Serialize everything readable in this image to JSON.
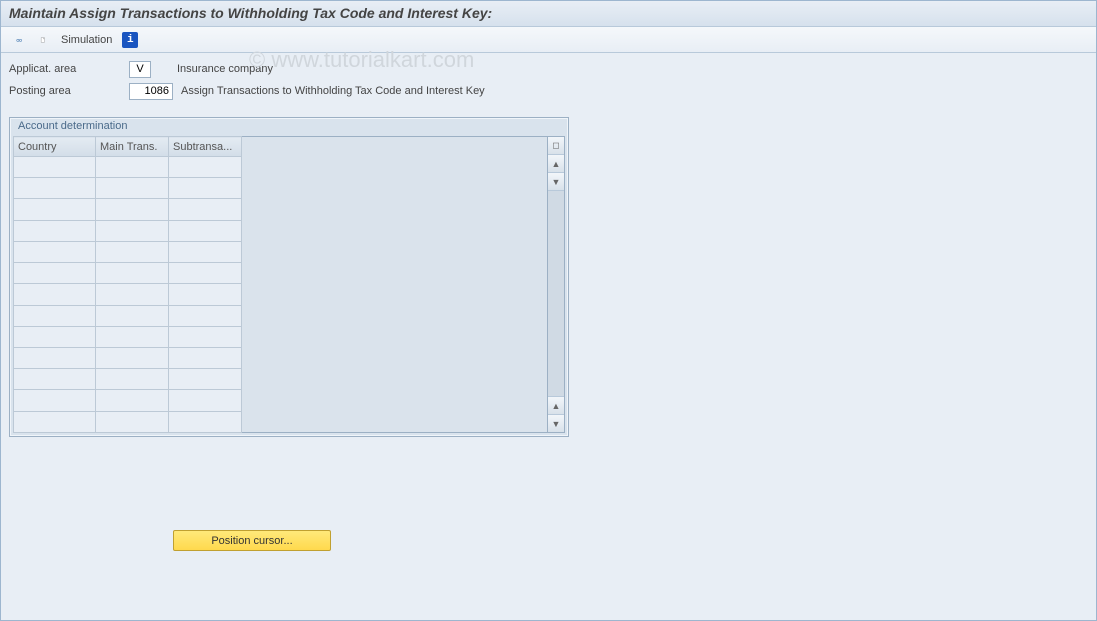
{
  "title": "Maintain Assign Transactions to Withholding Tax Code and Interest Key:",
  "toolbar": {
    "simulation_label": "Simulation"
  },
  "form": {
    "applicat_area": {
      "label": "Applicat. area",
      "value": "V",
      "desc": "Insurance company"
    },
    "posting_area": {
      "label": "Posting area",
      "value": "1086",
      "desc": "Assign Transactions to Withholding Tax Code and Interest Key"
    }
  },
  "grid": {
    "title": "Account determination",
    "columns": [
      "Country",
      "Main Trans.",
      "Subtransa..."
    ],
    "row_count": 13
  },
  "buttons": {
    "position_cursor": "Position cursor..."
  },
  "watermark": "© www.tutorialkart.com",
  "colors": {
    "panel_bg": "#e8eef5",
    "border": "#9cb0c4",
    "title_gradient_top": "#e8eef5",
    "title_gradient_bottom": "#d6e1ed",
    "info_bg": "#1a55c0",
    "button_bg_top": "#ffe97a",
    "button_bg_bottom": "#ffd94d"
  }
}
